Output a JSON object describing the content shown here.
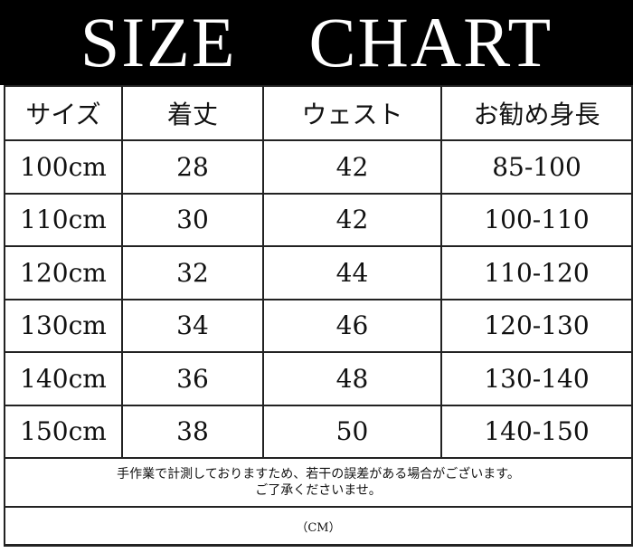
{
  "title": "SIZE　CHART",
  "headers": [
    "サイズ",
    "着丈",
    "ウェスト",
    "お勧め身長"
  ],
  "rows": [
    [
      "100cm",
      "28",
      "42",
      "85-100"
    ],
    [
      "110cm",
      "30",
      "42",
      "100-110"
    ],
    [
      "120cm",
      "32",
      "44",
      "110-120"
    ],
    [
      "130cm",
      "34",
      "46",
      "120-130"
    ],
    [
      "140cm",
      "36",
      "48",
      "130-140"
    ],
    [
      "150cm",
      "38",
      "50",
      "140-150"
    ]
  ],
  "note_line1": "手作業で計測しておりますため、若干の誤差がある場合がございます。",
  "note_line2": "ご了承くださいませ。",
  "unit": "（CM）"
}
